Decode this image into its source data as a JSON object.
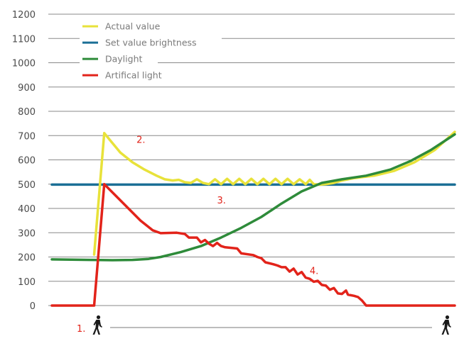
{
  "chart_data": {
    "type": "line",
    "title": "",
    "xlabel": "",
    "ylabel": "",
    "ylim": [
      0,
      1200
    ],
    "y_ticks": [
      0,
      100,
      200,
      300,
      400,
      500,
      600,
      700,
      800,
      900,
      1000,
      1100,
      1200
    ],
    "grid": "horizontal",
    "legend_position": "top-left",
    "x_range": [
      0,
      100
    ],
    "series": [
      {
        "name": "Actual value",
        "color": "#e8e23a",
        "points": [
          [
            10.5,
            210
          ],
          [
            13,
            710
          ],
          [
            14.5,
            680
          ],
          [
            17,
            630
          ],
          [
            20,
            590
          ],
          [
            23,
            560
          ],
          [
            26,
            535
          ],
          [
            28,
            520
          ],
          [
            30,
            515
          ],
          [
            31.5,
            518
          ],
          [
            33,
            508
          ],
          [
            34.5,
            505
          ],
          [
            36,
            520
          ],
          [
            37.5,
            505
          ],
          [
            39,
            500
          ],
          [
            40.5,
            520
          ],
          [
            42,
            500
          ],
          [
            43.5,
            522
          ],
          [
            45,
            500
          ],
          [
            46.5,
            522
          ],
          [
            48,
            500
          ],
          [
            49.5,
            522
          ],
          [
            51,
            500
          ],
          [
            52.5,
            522
          ],
          [
            54,
            500
          ],
          [
            55.5,
            522
          ],
          [
            57,
            500
          ],
          [
            58.5,
            522
          ],
          [
            60,
            500
          ],
          [
            61.5,
            520
          ],
          [
            63,
            500
          ],
          [
            64,
            518
          ],
          [
            65,
            500
          ],
          [
            66.5,
            498
          ],
          [
            68,
            500
          ],
          [
            70,
            505
          ],
          [
            72,
            515
          ],
          [
            75,
            525
          ],
          [
            80,
            535
          ],
          [
            85,
            555
          ],
          [
            90,
            590
          ],
          [
            95,
            640
          ],
          [
            100,
            715
          ]
        ]
      },
      {
        "name": "Set value brightness",
        "color": "#1b6f96",
        "points": [
          [
            0,
            498
          ],
          [
            100,
            498
          ]
        ]
      },
      {
        "name": "Daylight",
        "color": "#2e8b3a",
        "points": [
          [
            0,
            190
          ],
          [
            10,
            188
          ],
          [
            15,
            187
          ],
          [
            20,
            188
          ],
          [
            24,
            192
          ],
          [
            27,
            200
          ],
          [
            32,
            220
          ],
          [
            37,
            245
          ],
          [
            42,
            280
          ],
          [
            47,
            320
          ],
          [
            52,
            365
          ],
          [
            57,
            420
          ],
          [
            62,
            470
          ],
          [
            67,
            505
          ],
          [
            72,
            520
          ],
          [
            78,
            535
          ],
          [
            84,
            560
          ],
          [
            89,
            595
          ],
          [
            94,
            640
          ],
          [
            100,
            705
          ]
        ]
      },
      {
        "name": "Artifical light",
        "color": "#e2231a",
        "points": [
          [
            0,
            0
          ],
          [
            10.5,
            0
          ],
          [
            13,
            500
          ],
          [
            16,
            450
          ],
          [
            19,
            400
          ],
          [
            22,
            350
          ],
          [
            25,
            310
          ],
          [
            27,
            298
          ],
          [
            31,
            300
          ],
          [
            33,
            295
          ],
          [
            34,
            280
          ],
          [
            36,
            280
          ],
          [
            37,
            260
          ],
          [
            38,
            270
          ],
          [
            39,
            255
          ],
          [
            40,
            245
          ],
          [
            41,
            258
          ],
          [
            42,
            245
          ],
          [
            43,
            240
          ],
          [
            46,
            235
          ],
          [
            47,
            215
          ],
          [
            50,
            208
          ],
          [
            51,
            200
          ],
          [
            52,
            195
          ],
          [
            53,
            178
          ],
          [
            55,
            170
          ],
          [
            56,
            165
          ],
          [
            57,
            158
          ],
          [
            58,
            158
          ],
          [
            59,
            140
          ],
          [
            60,
            152
          ],
          [
            61,
            128
          ],
          [
            62,
            138
          ],
          [
            63,
            115
          ],
          [
            64,
            110
          ],
          [
            65,
            98
          ],
          [
            66,
            102
          ],
          [
            67,
            85
          ],
          [
            68,
            82
          ],
          [
            69,
            65
          ],
          [
            70,
            72
          ],
          [
            71,
            50
          ],
          [
            72,
            48
          ],
          [
            73,
            62
          ],
          [
            73.5,
            45
          ],
          [
            75,
            40
          ],
          [
            76,
            35
          ],
          [
            77,
            20
          ],
          [
            78,
            0
          ],
          [
            100,
            0
          ]
        ]
      }
    ],
    "annotations": [
      {
        "text": "1.",
        "x": 7,
        "y": -85
      },
      {
        "text": "2.",
        "x": 21,
        "y": 670
      },
      {
        "text": "3.",
        "x": 41,
        "y": 420
      },
      {
        "text": "4.",
        "x": 64,
        "y": 130
      }
    ],
    "icons": [
      "pedestrian-icon",
      "pedestrian-icon"
    ]
  }
}
